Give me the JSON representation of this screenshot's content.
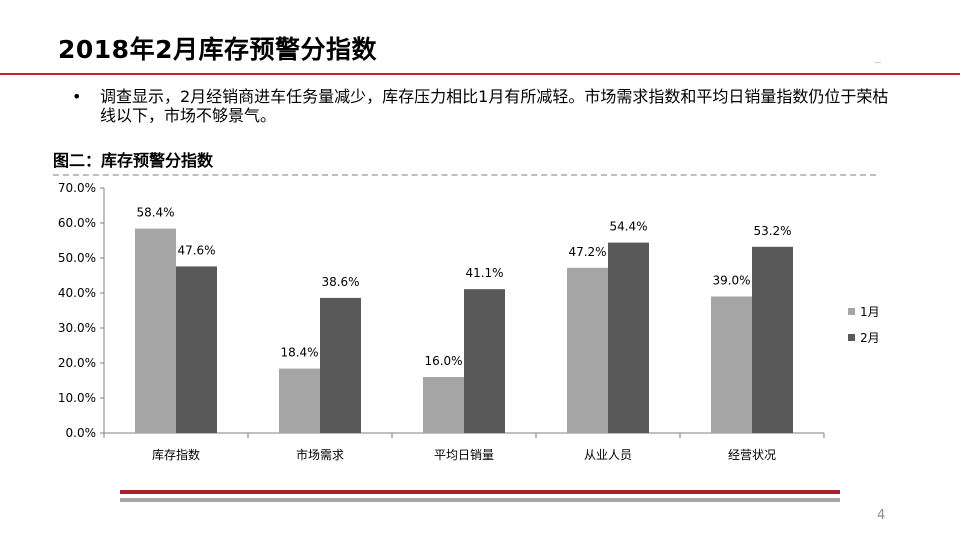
{
  "slide": {
    "title": "2018年2月库存预警分指数",
    "bullet_symbol": "•",
    "bullet_text": "调查显示，2月经销商进车任务量减少，库存压力相比1月有所减轻。市场需求指数和平均日销量指数仍位于荣枯线以下，市场不够景气。",
    "page_number": "4"
  },
  "chart_data": {
    "type": "bar",
    "title": "图二：库存预警分指数",
    "categories": [
      "库存指数",
      "市场需求",
      "平均日销量",
      "从业人员",
      "经营状况"
    ],
    "series": [
      {
        "name": "1月",
        "values": [
          58.4,
          18.4,
          16.0,
          47.2,
          39.0
        ],
        "labels": [
          "58.4%",
          "18.4%",
          "16.0%",
          "47.2%",
          "39.0%"
        ],
        "color": "#a5a5a5"
      },
      {
        "name": "2月",
        "values": [
          47.6,
          38.6,
          41.1,
          54.4,
          53.2
        ],
        "labels": [
          "47.6%",
          "38.6%",
          "41.1%",
          "54.4%",
          "53.2%"
        ],
        "color": "#595959"
      }
    ],
    "ylim": [
      0,
      70
    ],
    "yticks": [
      "0.0%",
      "10.0%",
      "20.0%",
      "30.0%",
      "40.0%",
      "50.0%",
      "60.0%",
      "70.0%"
    ],
    "grid": false,
    "legend_position": "right",
    "xlabel": "",
    "ylabel": ""
  },
  "colors": {
    "accent_red": "#c0272d",
    "bar_light": "#a5a5a5",
    "bar_dark": "#595959",
    "axis": "#808080"
  }
}
